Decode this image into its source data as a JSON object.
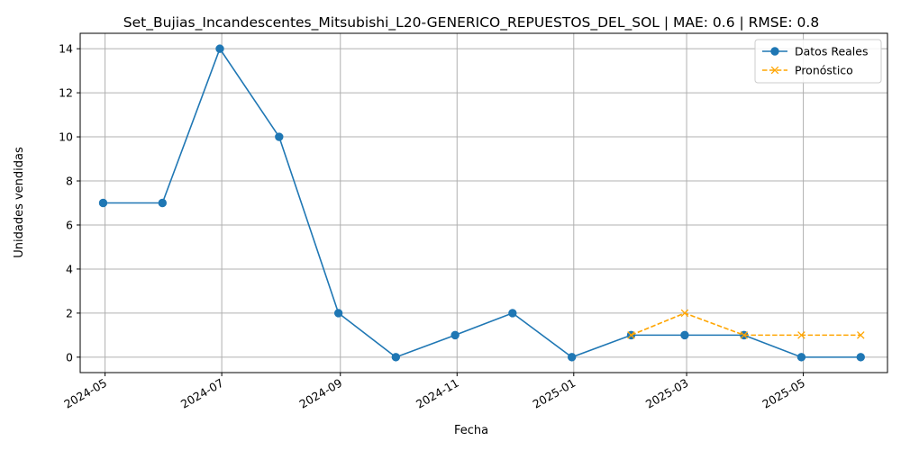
{
  "chart_data": {
    "type": "line",
    "title": "Set_Bujias_Incandescentes_Mitsubishi_L20-GENERICO_REPUESTOS_DEL_SOL | MAE: 0.6 | RMSE: 0.8",
    "xlabel": "Fecha",
    "ylabel": "Unidades vendidas",
    "grid": true,
    "legend_position": "top-right",
    "x_ticks": [
      "2024-05",
      "2024-07",
      "2024-09",
      "2024-11",
      "2025-01",
      "2025-03",
      "2025-05"
    ],
    "y_ticks": [
      "0",
      "2",
      "4",
      "6",
      "8",
      "10",
      "12",
      "14"
    ],
    "ylim": [
      -0.7,
      14.7
    ],
    "xlim": [
      "2024-04-18",
      "2025-06-14"
    ],
    "series": [
      {
        "name": "Datos Reales",
        "color": "#1f77b4",
        "style": "solid",
        "marker": "circle",
        "x": [
          "2024-04-30",
          "2024-05-31",
          "2024-06-30",
          "2024-07-31",
          "2024-08-31",
          "2024-09-30",
          "2024-10-31",
          "2024-11-30",
          "2024-12-31",
          "2025-01-31",
          "2025-02-28",
          "2025-03-31",
          "2025-04-30",
          "2025-05-31"
        ],
        "values": [
          7,
          7,
          14,
          10,
          2,
          0,
          1,
          2,
          0,
          1,
          1,
          1,
          0,
          0
        ]
      },
      {
        "name": "Pronóstico",
        "color": "#ffa500",
        "style": "dashed",
        "marker": "x",
        "x": [
          "2025-01-31",
          "2025-02-28",
          "2025-03-31",
          "2025-04-30",
          "2025-05-31"
        ],
        "values": [
          1,
          2,
          1,
          1,
          1
        ]
      }
    ]
  }
}
